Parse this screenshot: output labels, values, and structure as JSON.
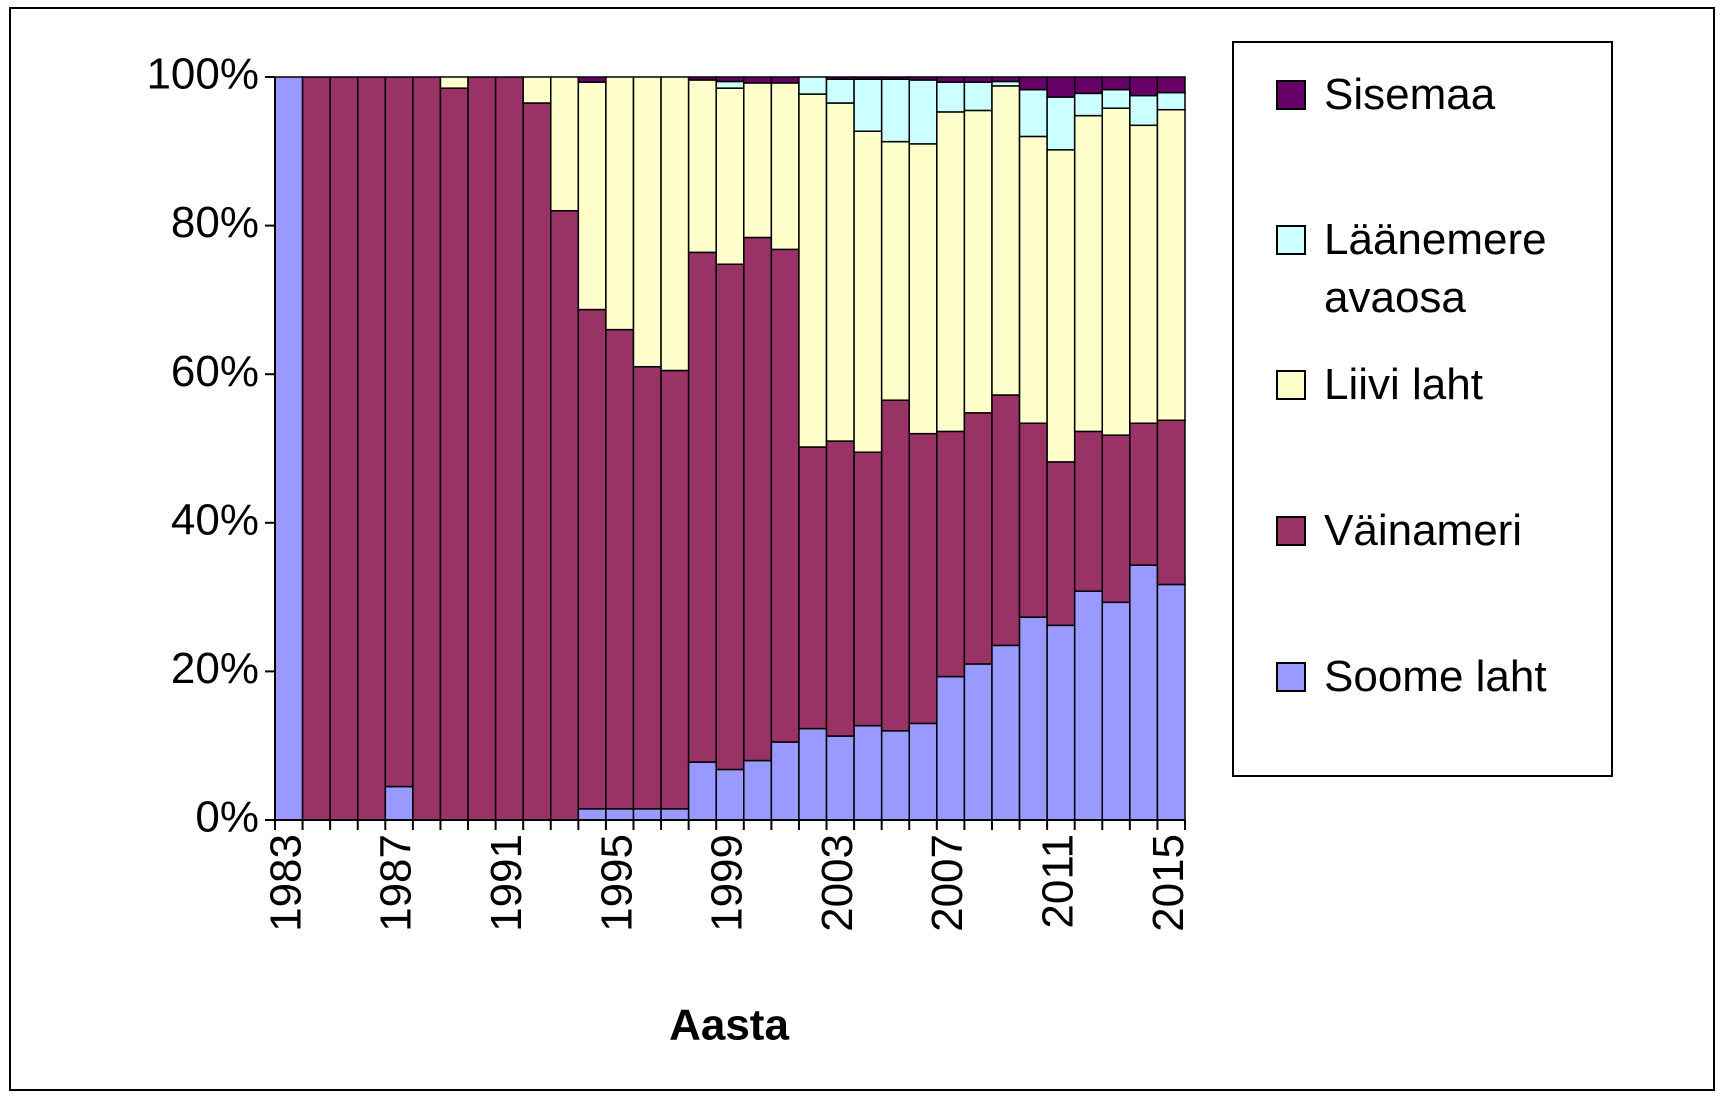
{
  "chart_data": {
    "type": "stacked_bar",
    "xlabel": "Aasta",
    "categories": [
      "1983",
      null,
      null,
      null,
      "1987",
      null,
      null,
      null,
      "1991",
      null,
      null,
      null,
      "1995",
      null,
      null,
      null,
      "1999",
      null,
      null,
      null,
      "2003",
      null,
      null,
      null,
      "2007",
      null,
      null,
      null,
      "2011",
      null,
      null,
      null,
      "2015"
    ],
    "series": [
      {
        "name": "Soome laht",
        "color": "#9999ff",
        "values": [
          100,
          0,
          0,
          0,
          4.5,
          0,
          0,
          0,
          0,
          0,
          0,
          1.5,
          1.5,
          1.5,
          1.5,
          7.8,
          6.8,
          8,
          10.5,
          12.3,
          11.3,
          12.7,
          12,
          13,
          19.3,
          21,
          23.5,
          27.3,
          26.2,
          30.8,
          29.3,
          34.3,
          31.7
        ]
      },
      {
        "name": "Väinameri",
        "color": "#993366",
        "values": [
          0,
          100,
          100,
          100,
          95.5,
          100,
          98.5,
          100,
          100,
          96.5,
          82,
          67.2,
          64.5,
          59.5,
          59,
          68.6,
          68,
          70.4,
          66.3,
          37.9,
          39.7,
          36.8,
          44.5,
          39,
          33,
          33.8,
          33.7,
          26.1,
          22,
          21.5,
          22.5,
          19.1,
          22.1
        ]
      },
      {
        "name": "Liivi laht",
        "color": "#ffffcc",
        "values": [
          0,
          0,
          0,
          0,
          0,
          0,
          1.5,
          0,
          0,
          3.5,
          18,
          30.6,
          34,
          39,
          39.5,
          23.2,
          23.7,
          20.8,
          22.4,
          47.5,
          45.5,
          43.2,
          34.8,
          39,
          43,
          40.7,
          41.6,
          38.6,
          42,
          42.5,
          44,
          40.1,
          41.8
        ]
      },
      {
        "name": "Läänemere avaosa",
        "color": "#ccffff",
        "values": [
          0,
          0,
          0,
          0,
          0,
          0,
          0,
          0,
          0,
          0,
          0,
          0,
          0,
          0,
          0,
          0,
          0.9,
          0,
          0,
          2.3,
          3.2,
          7,
          8.4,
          8.6,
          4,
          3.8,
          0.6,
          6.3,
          7.1,
          3,
          2.5,
          4,
          2.3
        ]
      },
      {
        "name": "Sisemaa",
        "color": "#660066",
        "values": [
          0,
          0,
          0,
          0,
          0,
          0,
          0,
          0,
          0,
          0,
          0,
          0.7,
          0,
          0,
          0,
          0.4,
          0.6,
          0.8,
          0.8,
          0,
          0.3,
          0.3,
          0.3,
          0.4,
          0.7,
          0.7,
          0.6,
          1.7,
          2.7,
          2.2,
          1.7,
          2.5,
          2.1
        ]
      }
    ],
    "ylim": [
      0,
      100
    ],
    "yticks": [
      {
        "value": 0,
        "label": "0%"
      },
      {
        "value": 20,
        "label": "20%"
      },
      {
        "value": 40,
        "label": "40%"
      },
      {
        "value": 60,
        "label": "60%"
      },
      {
        "value": 80,
        "label": "80%"
      },
      {
        "value": 100,
        "label": "100%"
      }
    ],
    "legend": "right"
  }
}
